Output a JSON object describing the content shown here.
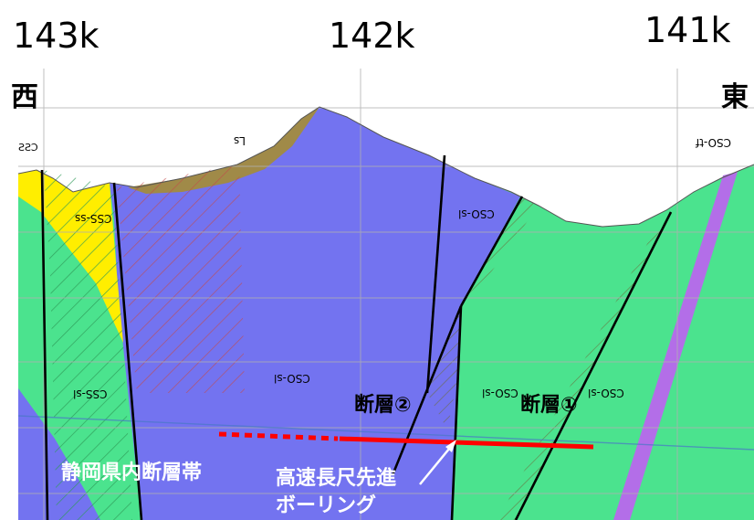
{
  "chainage": {
    "left": "143k",
    "center": "142k",
    "right": "141k"
  },
  "direction": {
    "west": "西",
    "east": "東"
  },
  "unit_codes": {
    "u1": "CSS",
    "u2": "Ls",
    "u3": "CSO-tf",
    "u4": "CSS-ss",
    "u5": "CSO-sl",
    "u6": "CSS-sl",
    "u7": "CSO-sl",
    "u8": "CSO-sl",
    "u9": "CSO-sl"
  },
  "faults": {
    "f2": "断層②",
    "f1": "断層①"
  },
  "fault_zone": "静岡県内断層帯",
  "boring": {
    "line1": "高速長尺先進",
    "line2": "ボーリング"
  },
  "colors": {
    "green": "#4be38e",
    "blue": "#7373f0",
    "yellow": "#ffee00",
    "brown": "#a08a48",
    "purple": "#b36ee8",
    "boring": "#ff0000"
  }
}
